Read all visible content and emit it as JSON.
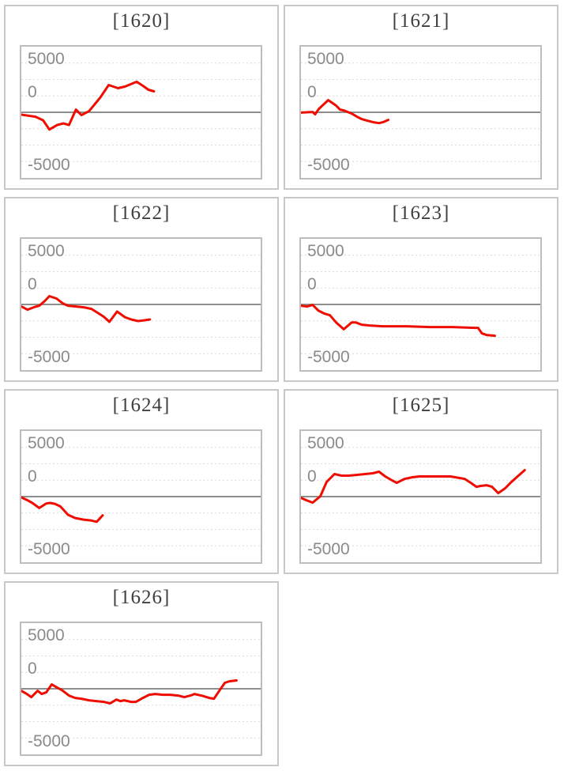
{
  "page": {
    "background": "#ffffff"
  },
  "axis": {
    "labels": [
      "5000",
      "0",
      "-5000"
    ]
  },
  "style": {
    "cell_border": "#c8c8c8",
    "plot_border": "#bdbdbd",
    "grid_color": "#d9d9d9",
    "zero_line_color": "#8e8e8e",
    "line_color": "#ee0d00",
    "title_color": "#3f3f3f",
    "label_color": "#8a8a8a"
  },
  "chart_data": [
    {
      "type": "line",
      "title": "[1620]",
      "y_ticks": [
        5000,
        0,
        -5000
      ],
      "y_range": [
        -6667,
        6667
      ],
      "gridline_step": 1667,
      "xlabel": "",
      "ylabel": "",
      "legend": false,
      "x_end_fraction": 0.554,
      "points": [
        [
          0,
          -240
        ],
        [
          0.059,
          -450
        ],
        [
          0.091,
          -810
        ],
        [
          0.117,
          -1750
        ],
        [
          0.15,
          -1290
        ],
        [
          0.176,
          -1130
        ],
        [
          0.199,
          -1290
        ],
        [
          0.228,
          270
        ],
        [
          0.251,
          -290
        ],
        [
          0.283,
          110
        ],
        [
          0.329,
          1480
        ],
        [
          0.365,
          2770
        ],
        [
          0.404,
          2450
        ],
        [
          0.433,
          2610
        ],
        [
          0.482,
          3100
        ],
        [
          0.508,
          2690
        ],
        [
          0.531,
          2290
        ],
        [
          0.554,
          2130
        ]
      ]
    },
    {
      "type": "line",
      "title": "[1621]",
      "y_ticks": [
        5000,
        0,
        -5000
      ],
      "y_range": [
        -6667,
        6667
      ],
      "gridline_step": 1667,
      "xlabel": "",
      "ylabel": "",
      "legend": false,
      "x_end_fraction": 0.365,
      "points": [
        [
          0,
          -30
        ],
        [
          0.049,
          30
        ],
        [
          0.059,
          -210
        ],
        [
          0.075,
          350
        ],
        [
          0.114,
          1240
        ],
        [
          0.147,
          680
        ],
        [
          0.163,
          270
        ],
        [
          0.179,
          190
        ],
        [
          0.212,
          -130
        ],
        [
          0.234,
          -450
        ],
        [
          0.254,
          -690
        ],
        [
          0.277,
          -850
        ],
        [
          0.303,
          -1010
        ],
        [
          0.326,
          -1100
        ],
        [
          0.342,
          -1010
        ],
        [
          0.365,
          -770
        ]
      ]
    },
    {
      "type": "line",
      "title": "[1622]",
      "y_ticks": [
        5000,
        0,
        -5000
      ],
      "y_range": [
        -6667,
        6667
      ],
      "gridline_step": 1667,
      "xlabel": "",
      "ylabel": "",
      "legend": false,
      "x_end_fraction": 0.537,
      "points": [
        [
          0,
          -210
        ],
        [
          0.026,
          -530
        ],
        [
          0.052,
          -290
        ],
        [
          0.075,
          -130
        ],
        [
          0.098,
          350
        ],
        [
          0.117,
          840
        ],
        [
          0.147,
          600
        ],
        [
          0.173,
          110
        ],
        [
          0.195,
          -130
        ],
        [
          0.228,
          -210
        ],
        [
          0.261,
          -290
        ],
        [
          0.293,
          -450
        ],
        [
          0.319,
          -850
        ],
        [
          0.345,
          -1250
        ],
        [
          0.368,
          -1770
        ],
        [
          0.4,
          -725
        ],
        [
          0.433,
          -1290
        ],
        [
          0.459,
          -1530
        ],
        [
          0.488,
          -1690
        ],
        [
          0.515,
          -1610
        ],
        [
          0.537,
          -1530
        ]
      ]
    },
    {
      "type": "line",
      "title": "[1623]",
      "y_ticks": [
        5000,
        0,
        -5000
      ],
      "y_range": [
        -6667,
        6667
      ],
      "gridline_step": 1667,
      "xlabel": "",
      "ylabel": "",
      "legend": false,
      "x_end_fraction": 0.81,
      "points": [
        [
          0,
          -130
        ],
        [
          0.026,
          -210
        ],
        [
          0.049,
          -50
        ],
        [
          0.072,
          -610
        ],
        [
          0.098,
          -930
        ],
        [
          0.121,
          -1100
        ],
        [
          0.147,
          -1820
        ],
        [
          0.179,
          -2520
        ],
        [
          0.212,
          -1820
        ],
        [
          0.228,
          -1820
        ],
        [
          0.254,
          -2060
        ],
        [
          0.287,
          -2140
        ],
        [
          0.342,
          -2220
        ],
        [
          0.44,
          -2220
        ],
        [
          0.54,
          -2300
        ],
        [
          0.635,
          -2300
        ],
        [
          0.726,
          -2380
        ],
        [
          0.74,
          -2380
        ],
        [
          0.756,
          -2940
        ],
        [
          0.775,
          -3100
        ],
        [
          0.81,
          -3180
        ]
      ]
    },
    {
      "type": "line",
      "title": "[1624]",
      "y_ticks": [
        5000,
        0,
        -5000
      ],
      "y_range": [
        -6667,
        6667
      ],
      "gridline_step": 1667,
      "xlabel": "",
      "ylabel": "",
      "legend": false,
      "x_end_fraction": 0.34,
      "points": [
        [
          0,
          -80
        ],
        [
          0.023,
          -340
        ],
        [
          0.046,
          -640
        ],
        [
          0.075,
          -1160
        ],
        [
          0.104,
          -700
        ],
        [
          0.12,
          -640
        ],
        [
          0.14,
          -730
        ],
        [
          0.163,
          -1000
        ],
        [
          0.195,
          -1850
        ],
        [
          0.225,
          -2180
        ],
        [
          0.26,
          -2340
        ],
        [
          0.29,
          -2420
        ],
        [
          0.315,
          -2560
        ],
        [
          0.34,
          -1900
        ]
      ]
    },
    {
      "type": "line",
      "title": "[1625]",
      "y_ticks": [
        5000,
        0,
        -5000
      ],
      "y_range": [
        -6667,
        6667
      ],
      "gridline_step": 1667,
      "xlabel": "",
      "ylabel": "",
      "legend": false,
      "x_end_fraction": 0.935,
      "points": [
        [
          0,
          -130
        ],
        [
          0.023,
          -370
        ],
        [
          0.049,
          -610
        ],
        [
          0.081,
          30
        ],
        [
          0.107,
          1480
        ],
        [
          0.14,
          2290
        ],
        [
          0.17,
          2130
        ],
        [
          0.2,
          2130
        ],
        [
          0.235,
          2210
        ],
        [
          0.267,
          2290
        ],
        [
          0.3,
          2370
        ],
        [
          0.326,
          2530
        ],
        [
          0.352,
          2050
        ],
        [
          0.381,
          1650
        ],
        [
          0.4,
          1400
        ],
        [
          0.433,
          1800
        ],
        [
          0.466,
          1970
        ],
        [
          0.495,
          2050
        ],
        [
          0.56,
          2050
        ],
        [
          0.625,
          2050
        ],
        [
          0.684,
          1800
        ],
        [
          0.71,
          1400
        ],
        [
          0.733,
          1000
        ],
        [
          0.749,
          1080
        ],
        [
          0.775,
          1160
        ],
        [
          0.798,
          1000
        ],
        [
          0.824,
          350
        ],
        [
          0.853,
          840
        ],
        [
          0.879,
          1480
        ],
        [
          0.905,
          2050
        ],
        [
          0.935,
          2690
        ]
      ]
    },
    {
      "type": "line",
      "title": "[1626]",
      "y_ticks": [
        5000,
        0,
        -5000
      ],
      "y_range": [
        -6667,
        6667
      ],
      "gridline_step": 1667,
      "xlabel": "",
      "ylabel": "",
      "legend": false,
      "x_end_fraction": 0.899,
      "points": [
        [
          0,
          -210
        ],
        [
          0.023,
          -530
        ],
        [
          0.042,
          -850
        ],
        [
          0.068,
          -210
        ],
        [
          0.085,
          -530
        ],
        [
          0.104,
          -370
        ],
        [
          0.127,
          440
        ],
        [
          0.15,
          110
        ],
        [
          0.169,
          -130
        ],
        [
          0.199,
          -690
        ],
        [
          0.225,
          -930
        ],
        [
          0.251,
          -1010
        ],
        [
          0.283,
          -1170
        ],
        [
          0.313,
          -1250
        ],
        [
          0.345,
          -1330
        ],
        [
          0.371,
          -1490
        ],
        [
          0.397,
          -1100
        ],
        [
          0.414,
          -1250
        ],
        [
          0.43,
          -1170
        ],
        [
          0.459,
          -1330
        ],
        [
          0.479,
          -1330
        ],
        [
          0.508,
          -930
        ],
        [
          0.534,
          -610
        ],
        [
          0.56,
          -530
        ],
        [
          0.59,
          -610
        ],
        [
          0.622,
          -610
        ],
        [
          0.655,
          -690
        ],
        [
          0.681,
          -850
        ],
        [
          0.707,
          -690
        ],
        [
          0.723,
          -530
        ],
        [
          0.752,
          -690
        ],
        [
          0.785,
          -930
        ],
        [
          0.805,
          -1010
        ],
        [
          0.827,
          -210
        ],
        [
          0.85,
          600
        ],
        [
          0.87,
          760
        ],
        [
          0.899,
          840
        ]
      ]
    }
  ]
}
